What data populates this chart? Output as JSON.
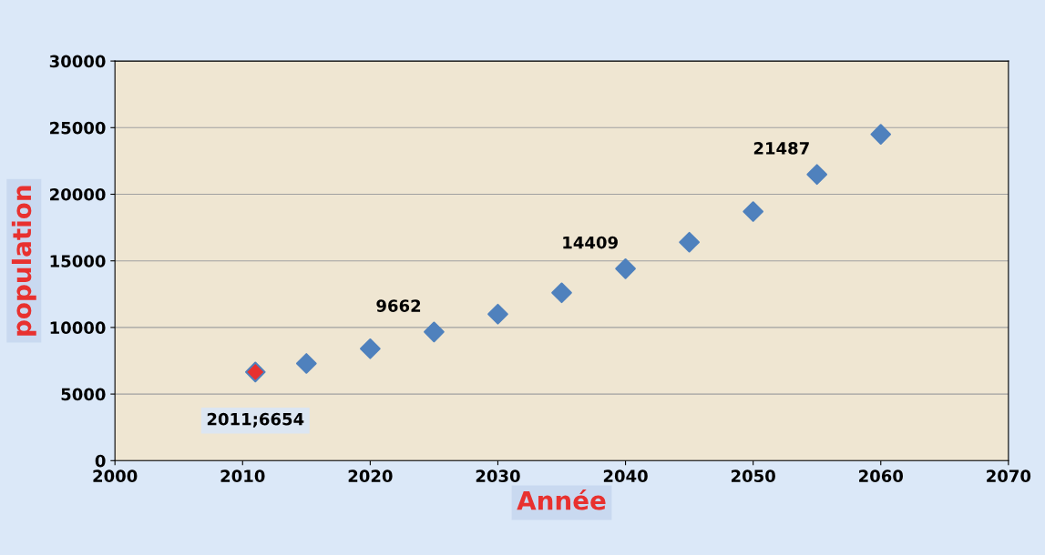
{
  "chart_data": {
    "type": "scatter",
    "xlabel": "Année",
    "ylabel": "population",
    "x": [
      2011,
      2015,
      2020,
      2025,
      2030,
      2035,
      2040,
      2045,
      2050,
      2055,
      2060
    ],
    "values": [
      6654,
      7300,
      8400,
      9662,
      11000,
      12600,
      14409,
      16400,
      18700,
      21487,
      24500
    ],
    "colors": [
      "#e8312f",
      "#4f81bd",
      "#4f81bd",
      "#4f81bd",
      "#4f81bd",
      "#4f81bd",
      "#4f81bd",
      "#4f81bd",
      "#4f81bd",
      "#4f81bd",
      "#4f81bd"
    ],
    "value_labels": [
      "2011;6654",
      null,
      null,
      "9662",
      null,
      null,
      "14409",
      null,
      null,
      "21487",
      null
    ],
    "xlim": [
      2000,
      2070
    ],
    "xticks": [
      2000,
      2010,
      2020,
      2030,
      2040,
      2050,
      2060,
      2070
    ],
    "ylim": [
      0,
      30000
    ],
    "yticks": [
      0,
      5000,
      10000,
      15000,
      20000,
      25000,
      30000
    ],
    "grid": "y",
    "marker": "diamond"
  }
}
